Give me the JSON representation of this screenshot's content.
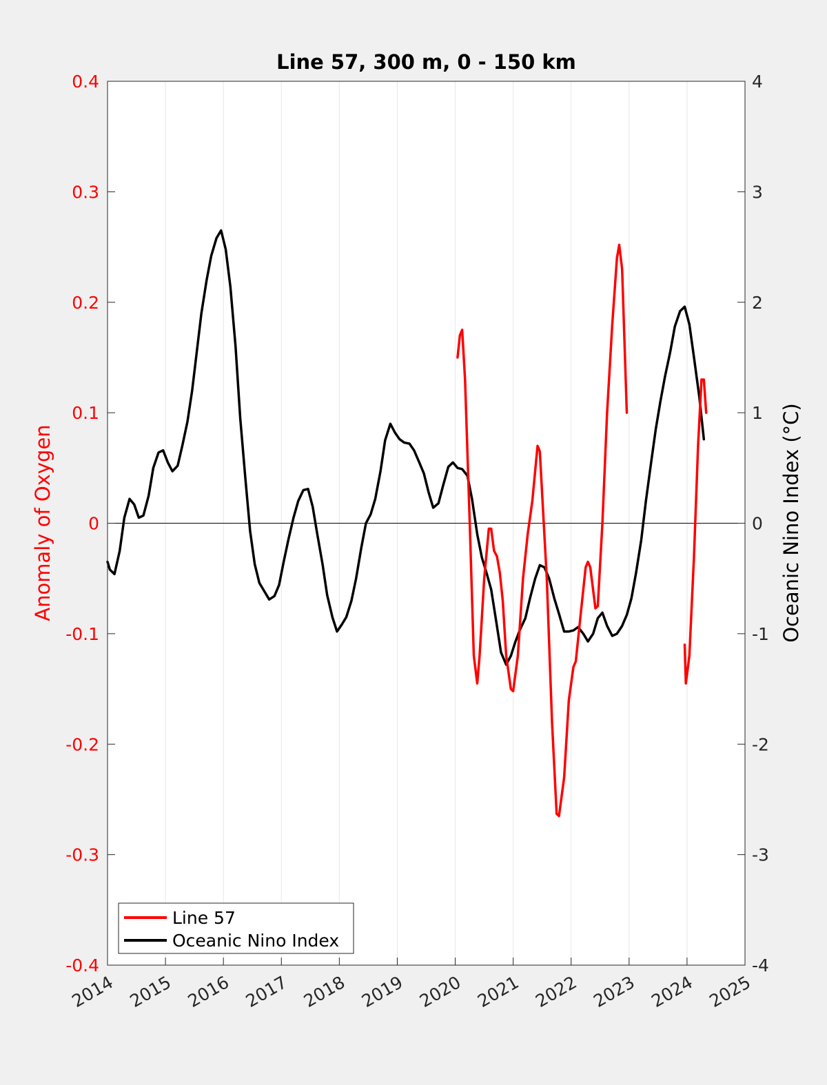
{
  "chart_data": {
    "type": "line",
    "title": "Line 57, 300 m, 0 - 150 km",
    "xlim": [
      2014,
      2025
    ],
    "x_ticks": [
      "2014",
      "2015",
      "2016",
      "2017",
      "2018",
      "2019",
      "2020",
      "2021",
      "2022",
      "2023",
      "2024",
      "2025"
    ],
    "y_left": {
      "label": "Anomaly of Oxygen",
      "color": "#ff0000",
      "lim": [
        -0.4,
        0.4
      ],
      "ticks": [
        "-0.4",
        "-0.3",
        "-0.2",
        "-0.1",
        "0",
        "0.1",
        "0.2",
        "0.3",
        "0.4"
      ]
    },
    "y_right": {
      "label": "Oceanic Nino Index (°C)",
      "color": "#000000",
      "lim": [
        -4,
        4
      ],
      "ticks": [
        "-4",
        "-3",
        "-2",
        "-1",
        "0",
        "1",
        "2",
        "3",
        "4"
      ]
    },
    "grid": "vertical",
    "zero_line": true,
    "legend": {
      "position": "bottom-left"
    },
    "series": [
      {
        "name": "Line 57",
        "axis": "left",
        "color": "#ff0000",
        "segments": [
          [
            [
              2020.04,
              0.15
            ],
            [
              2020.08,
              0.17
            ],
            [
              2020.12,
              0.175
            ],
            [
              2020.17,
              0.13
            ],
            [
              2020.25,
              0.0
            ],
            [
              2020.32,
              -0.12
            ],
            [
              2020.38,
              -0.145
            ],
            [
              2020.42,
              -0.12
            ],
            [
              2020.5,
              -0.05
            ],
            [
              2020.58,
              -0.005
            ],
            [
              2020.62,
              -0.005
            ],
            [
              2020.67,
              -0.025
            ],
            [
              2020.72,
              -0.03
            ],
            [
              2020.77,
              -0.045
            ],
            [
              2020.82,
              -0.07
            ],
            [
              2020.88,
              -0.12
            ],
            [
              2020.96,
              -0.15
            ],
            [
              2021.0,
              -0.152
            ],
            [
              2021.08,
              -0.12
            ],
            [
              2021.17,
              -0.05
            ],
            [
              2021.25,
              -0.01
            ],
            [
              2021.33,
              0.02
            ],
            [
              2021.42,
              0.07
            ],
            [
              2021.46,
              0.065
            ],
            [
              2021.58,
              -0.05
            ],
            [
              2021.67,
              -0.18
            ],
            [
              2021.75,
              -0.263
            ],
            [
              2021.79,
              -0.265
            ],
            [
              2021.88,
              -0.23
            ],
            [
              2021.96,
              -0.16
            ],
            [
              2022.04,
              -0.13
            ],
            [
              2022.08,
              -0.125
            ],
            [
              2022.17,
              -0.08
            ],
            [
              2022.25,
              -0.04
            ],
            [
              2022.29,
              -0.035
            ],
            [
              2022.33,
              -0.04
            ],
            [
              2022.42,
              -0.077
            ],
            [
              2022.46,
              -0.075
            ],
            [
              2022.54,
              0.0
            ],
            [
              2022.62,
              0.1
            ],
            [
              2022.71,
              0.18
            ],
            [
              2022.79,
              0.24
            ],
            [
              2022.83,
              0.252
            ],
            [
              2022.88,
              0.23
            ],
            [
              2022.96,
              0.1
            ]
          ],
          [
            [
              2023.96,
              -0.11
            ],
            [
              2023.98,
              -0.145
            ],
            [
              2024.04,
              -0.12
            ],
            [
              2024.12,
              -0.03
            ],
            [
              2024.19,
              0.07
            ],
            [
              2024.25,
              0.13
            ],
            [
              2024.29,
              0.13
            ],
            [
              2024.33,
              0.1
            ]
          ]
        ]
      },
      {
        "name": "Oceanic Nino Index",
        "axis": "right",
        "color": "#000000",
        "segments": [
          [
            [
              2014.0,
              -0.35
            ],
            [
              2014.04,
              -0.42
            ],
            [
              2014.12,
              -0.46
            ],
            [
              2014.21,
              -0.25
            ],
            [
              2014.29,
              0.05
            ],
            [
              2014.38,
              0.22
            ],
            [
              2014.46,
              0.17
            ],
            [
              2014.54,
              0.05
            ],
            [
              2014.62,
              0.07
            ],
            [
              2014.71,
              0.25
            ],
            [
              2014.79,
              0.5
            ],
            [
              2014.88,
              0.64
            ],
            [
              2014.96,
              0.66
            ],
            [
              2015.04,
              0.55
            ],
            [
              2015.12,
              0.47
            ],
            [
              2015.21,
              0.52
            ],
            [
              2015.29,
              0.7
            ],
            [
              2015.38,
              0.92
            ],
            [
              2015.46,
              1.2
            ],
            [
              2015.54,
              1.55
            ],
            [
              2015.62,
              1.9
            ],
            [
              2015.71,
              2.2
            ],
            [
              2015.79,
              2.42
            ],
            [
              2015.88,
              2.58
            ],
            [
              2015.96,
              2.65
            ],
            [
              2016.04,
              2.48
            ],
            [
              2016.12,
              2.14
            ],
            [
              2016.21,
              1.6
            ],
            [
              2016.29,
              0.95
            ],
            [
              2016.38,
              0.4
            ],
            [
              2016.46,
              -0.07
            ],
            [
              2016.54,
              -0.37
            ],
            [
              2016.62,
              -0.54
            ],
            [
              2016.71,
              -0.62
            ],
            [
              2016.79,
              -0.69
            ],
            [
              2016.88,
              -0.66
            ],
            [
              2016.96,
              -0.56
            ],
            [
              2017.04,
              -0.35
            ],
            [
              2017.12,
              -0.15
            ],
            [
              2017.21,
              0.05
            ],
            [
              2017.29,
              0.2
            ],
            [
              2017.38,
              0.3
            ],
            [
              2017.46,
              0.31
            ],
            [
              2017.54,
              0.15
            ],
            [
              2017.62,
              -0.1
            ],
            [
              2017.71,
              -0.37
            ],
            [
              2017.79,
              -0.65
            ],
            [
              2017.88,
              -0.85
            ],
            [
              2017.96,
              -0.98
            ],
            [
              2018.04,
              -0.92
            ],
            [
              2018.12,
              -0.85
            ],
            [
              2018.21,
              -0.7
            ],
            [
              2018.29,
              -0.5
            ],
            [
              2018.38,
              -0.22
            ],
            [
              2018.46,
              0.0
            ],
            [
              2018.54,
              0.08
            ],
            [
              2018.62,
              0.22
            ],
            [
              2018.71,
              0.47
            ],
            [
              2018.79,
              0.75
            ],
            [
              2018.88,
              0.9
            ],
            [
              2018.96,
              0.82
            ],
            [
              2019.04,
              0.76
            ],
            [
              2019.12,
              0.73
            ],
            [
              2019.21,
              0.72
            ],
            [
              2019.29,
              0.66
            ],
            [
              2019.38,
              0.55
            ],
            [
              2019.46,
              0.45
            ],
            [
              2019.54,
              0.28
            ],
            [
              2019.62,
              0.14
            ],
            [
              2019.71,
              0.18
            ],
            [
              2019.79,
              0.34
            ],
            [
              2019.88,
              0.51
            ],
            [
              2019.96,
              0.55
            ],
            [
              2020.04,
              0.5
            ],
            [
              2020.12,
              0.49
            ],
            [
              2020.21,
              0.43
            ],
            [
              2020.29,
              0.22
            ],
            [
              2020.38,
              -0.1
            ],
            [
              2020.46,
              -0.31
            ],
            [
              2020.54,
              -0.45
            ],
            [
              2020.62,
              -0.6
            ],
            [
              2020.71,
              -0.9
            ],
            [
              2020.79,
              -1.17
            ],
            [
              2020.88,
              -1.28
            ],
            [
              2020.96,
              -1.2
            ],
            [
              2021.04,
              -1.07
            ],
            [
              2021.12,
              -0.96
            ],
            [
              2021.21,
              -0.86
            ],
            [
              2021.29,
              -0.68
            ],
            [
              2021.38,
              -0.5
            ],
            [
              2021.46,
              -0.38
            ],
            [
              2021.54,
              -0.4
            ],
            [
              2021.62,
              -0.5
            ],
            [
              2021.71,
              -0.68
            ],
            [
              2021.79,
              -0.82
            ],
            [
              2021.88,
              -0.98
            ],
            [
              2021.96,
              -0.98
            ],
            [
              2022.04,
              -0.97
            ],
            [
              2022.12,
              -0.94
            ],
            [
              2022.21,
              -1.0
            ],
            [
              2022.29,
              -1.07
            ],
            [
              2022.38,
              -1.0
            ],
            [
              2022.46,
              -0.86
            ],
            [
              2022.54,
              -0.81
            ],
            [
              2022.62,
              -0.93
            ],
            [
              2022.71,
              -1.02
            ],
            [
              2022.79,
              -1.0
            ],
            [
              2022.88,
              -0.93
            ],
            [
              2022.96,
              -0.83
            ],
            [
              2023.04,
              -0.68
            ],
            [
              2023.12,
              -0.45
            ],
            [
              2023.21,
              -0.15
            ],
            [
              2023.29,
              0.2
            ],
            [
              2023.38,
              0.55
            ],
            [
              2023.46,
              0.85
            ],
            [
              2023.54,
              1.1
            ],
            [
              2023.62,
              1.33
            ],
            [
              2023.71,
              1.55
            ],
            [
              2023.79,
              1.78
            ],
            [
              2023.88,
              1.92
            ],
            [
              2023.96,
              1.96
            ],
            [
              2024.04,
              1.8
            ],
            [
              2024.12,
              1.5
            ],
            [
              2024.21,
              1.15
            ],
            [
              2024.29,
              0.76
            ]
          ]
        ]
      }
    ]
  }
}
